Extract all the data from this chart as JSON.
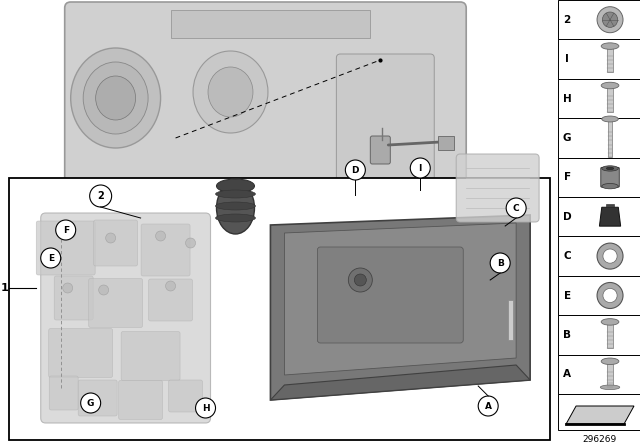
{
  "bg_color": "#ffffff",
  "part_number": "296269",
  "sidebar_labels": [
    "2",
    "I",
    "H",
    "G",
    "F",
    "D",
    "C",
    "E",
    "B",
    "A"
  ],
  "main_labels": [
    "2",
    "1",
    "A",
    "B",
    "C",
    "D",
    "E",
    "F",
    "G",
    "H",
    "I"
  ],
  "light_gray": "#d4d4d4",
  "mid_gray": "#aaaaaa",
  "dark_gray": "#707070",
  "very_light_gray": "#ebebeb",
  "trans_color": "#c8c8c8",
  "oil_pan_color": "#7a7a7a",
  "oil_pan_inner": "#909090",
  "ghost_color": "#d8d8d8",
  "black": "#000000",
  "white": "#ffffff"
}
